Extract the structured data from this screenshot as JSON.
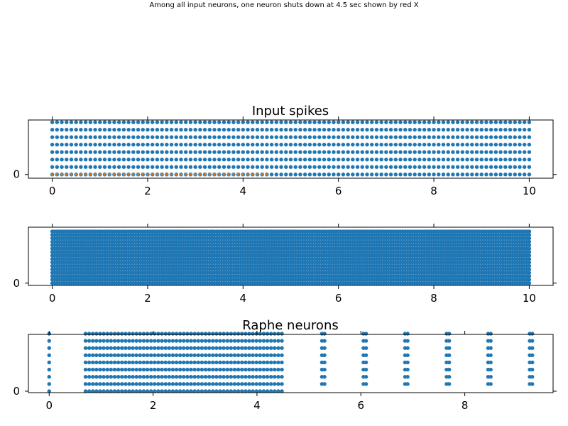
{
  "suptitle": "Among all input neurons, one neuron shuts down at 4.5 sec shown by red X",
  "colors": {
    "spike": "#1f77b4",
    "shutdown": "#ff7f0e",
    "axis": "#000000"
  },
  "chart_data": [
    {
      "type": "scatter",
      "title": "Input spikes",
      "xlim": [
        -0.5,
        10.5
      ],
      "ylim": [
        -0.5,
        7.3
      ],
      "xticks": [
        "0",
        "2",
        "4",
        "6",
        "8",
        "10"
      ],
      "xtick_values": [
        0,
        2,
        4,
        6,
        8,
        10
      ],
      "yticks": [
        "0"
      ],
      "ytick_values": [
        0
      ],
      "series": [
        {
          "neurons": [
            0,
            1,
            2,
            3,
            4,
            5,
            6,
            7
          ],
          "t_start": 0,
          "t_end": 10,
          "dt": 0.1,
          "color": "#1f77b4"
        },
        {
          "neurons": [
            0
          ],
          "t_start": 0,
          "t_end": 4.5,
          "dt": 0.1,
          "marker": "x",
          "color": "#ff7f0e"
        }
      ]
    },
    {
      "type": "scatter",
      "title": "",
      "xlim": [
        -0.5,
        10.5
      ],
      "ylim": [
        -0.3,
        7.3
      ],
      "xticks": [
        "0",
        "2",
        "4",
        "6",
        "8",
        "10"
      ],
      "xtick_values": [
        0,
        2,
        4,
        6,
        8,
        10
      ],
      "yticks": [
        "0"
      ],
      "ytick_values": [
        0
      ],
      "series": [
        {
          "neurons": [
            0,
            1,
            2,
            3,
            4,
            5,
            6,
            7,
            8,
            9,
            10,
            11,
            12,
            13,
            14,
            15
          ],
          "neuron_scale": 0.45,
          "t_start": 0,
          "t_end": 10,
          "dt": 0.05,
          "color": "#1f77b4"
        }
      ]
    },
    {
      "type": "scatter",
      "title": "Raphe neurons",
      "xlim": [
        -0.4,
        9.7
      ],
      "ylim": [
        -0.2,
        7.9
      ],
      "xticks": [
        "0",
        "2",
        "4",
        "6",
        "8"
      ],
      "xtick_values": [
        0,
        2,
        4,
        6,
        8
      ],
      "yticks": [
        "0"
      ],
      "ytick_values": [
        0
      ],
      "series": [
        {
          "neurons": [
            0,
            1,
            2,
            3,
            4,
            5,
            6,
            7,
            8
          ],
          "times": [
            0
          ],
          "color": "#1f77b4"
        },
        {
          "neurons": [
            0,
            1,
            2,
            3,
            4,
            5,
            6,
            7,
            8
          ],
          "t_start": 0.7,
          "t_end": 4.5,
          "dt": 0.07,
          "color": "#1f77b4"
        },
        {
          "neurons": [
            1,
            2,
            3,
            4,
            5,
            6,
            7,
            8
          ],
          "times": [
            5.25,
            5.3,
            6.05,
            6.1,
            6.85,
            6.9,
            7.65,
            7.7,
            8.45,
            8.5,
            9.25,
            9.3
          ],
          "color": "#1f77b4"
        }
      ]
    }
  ]
}
